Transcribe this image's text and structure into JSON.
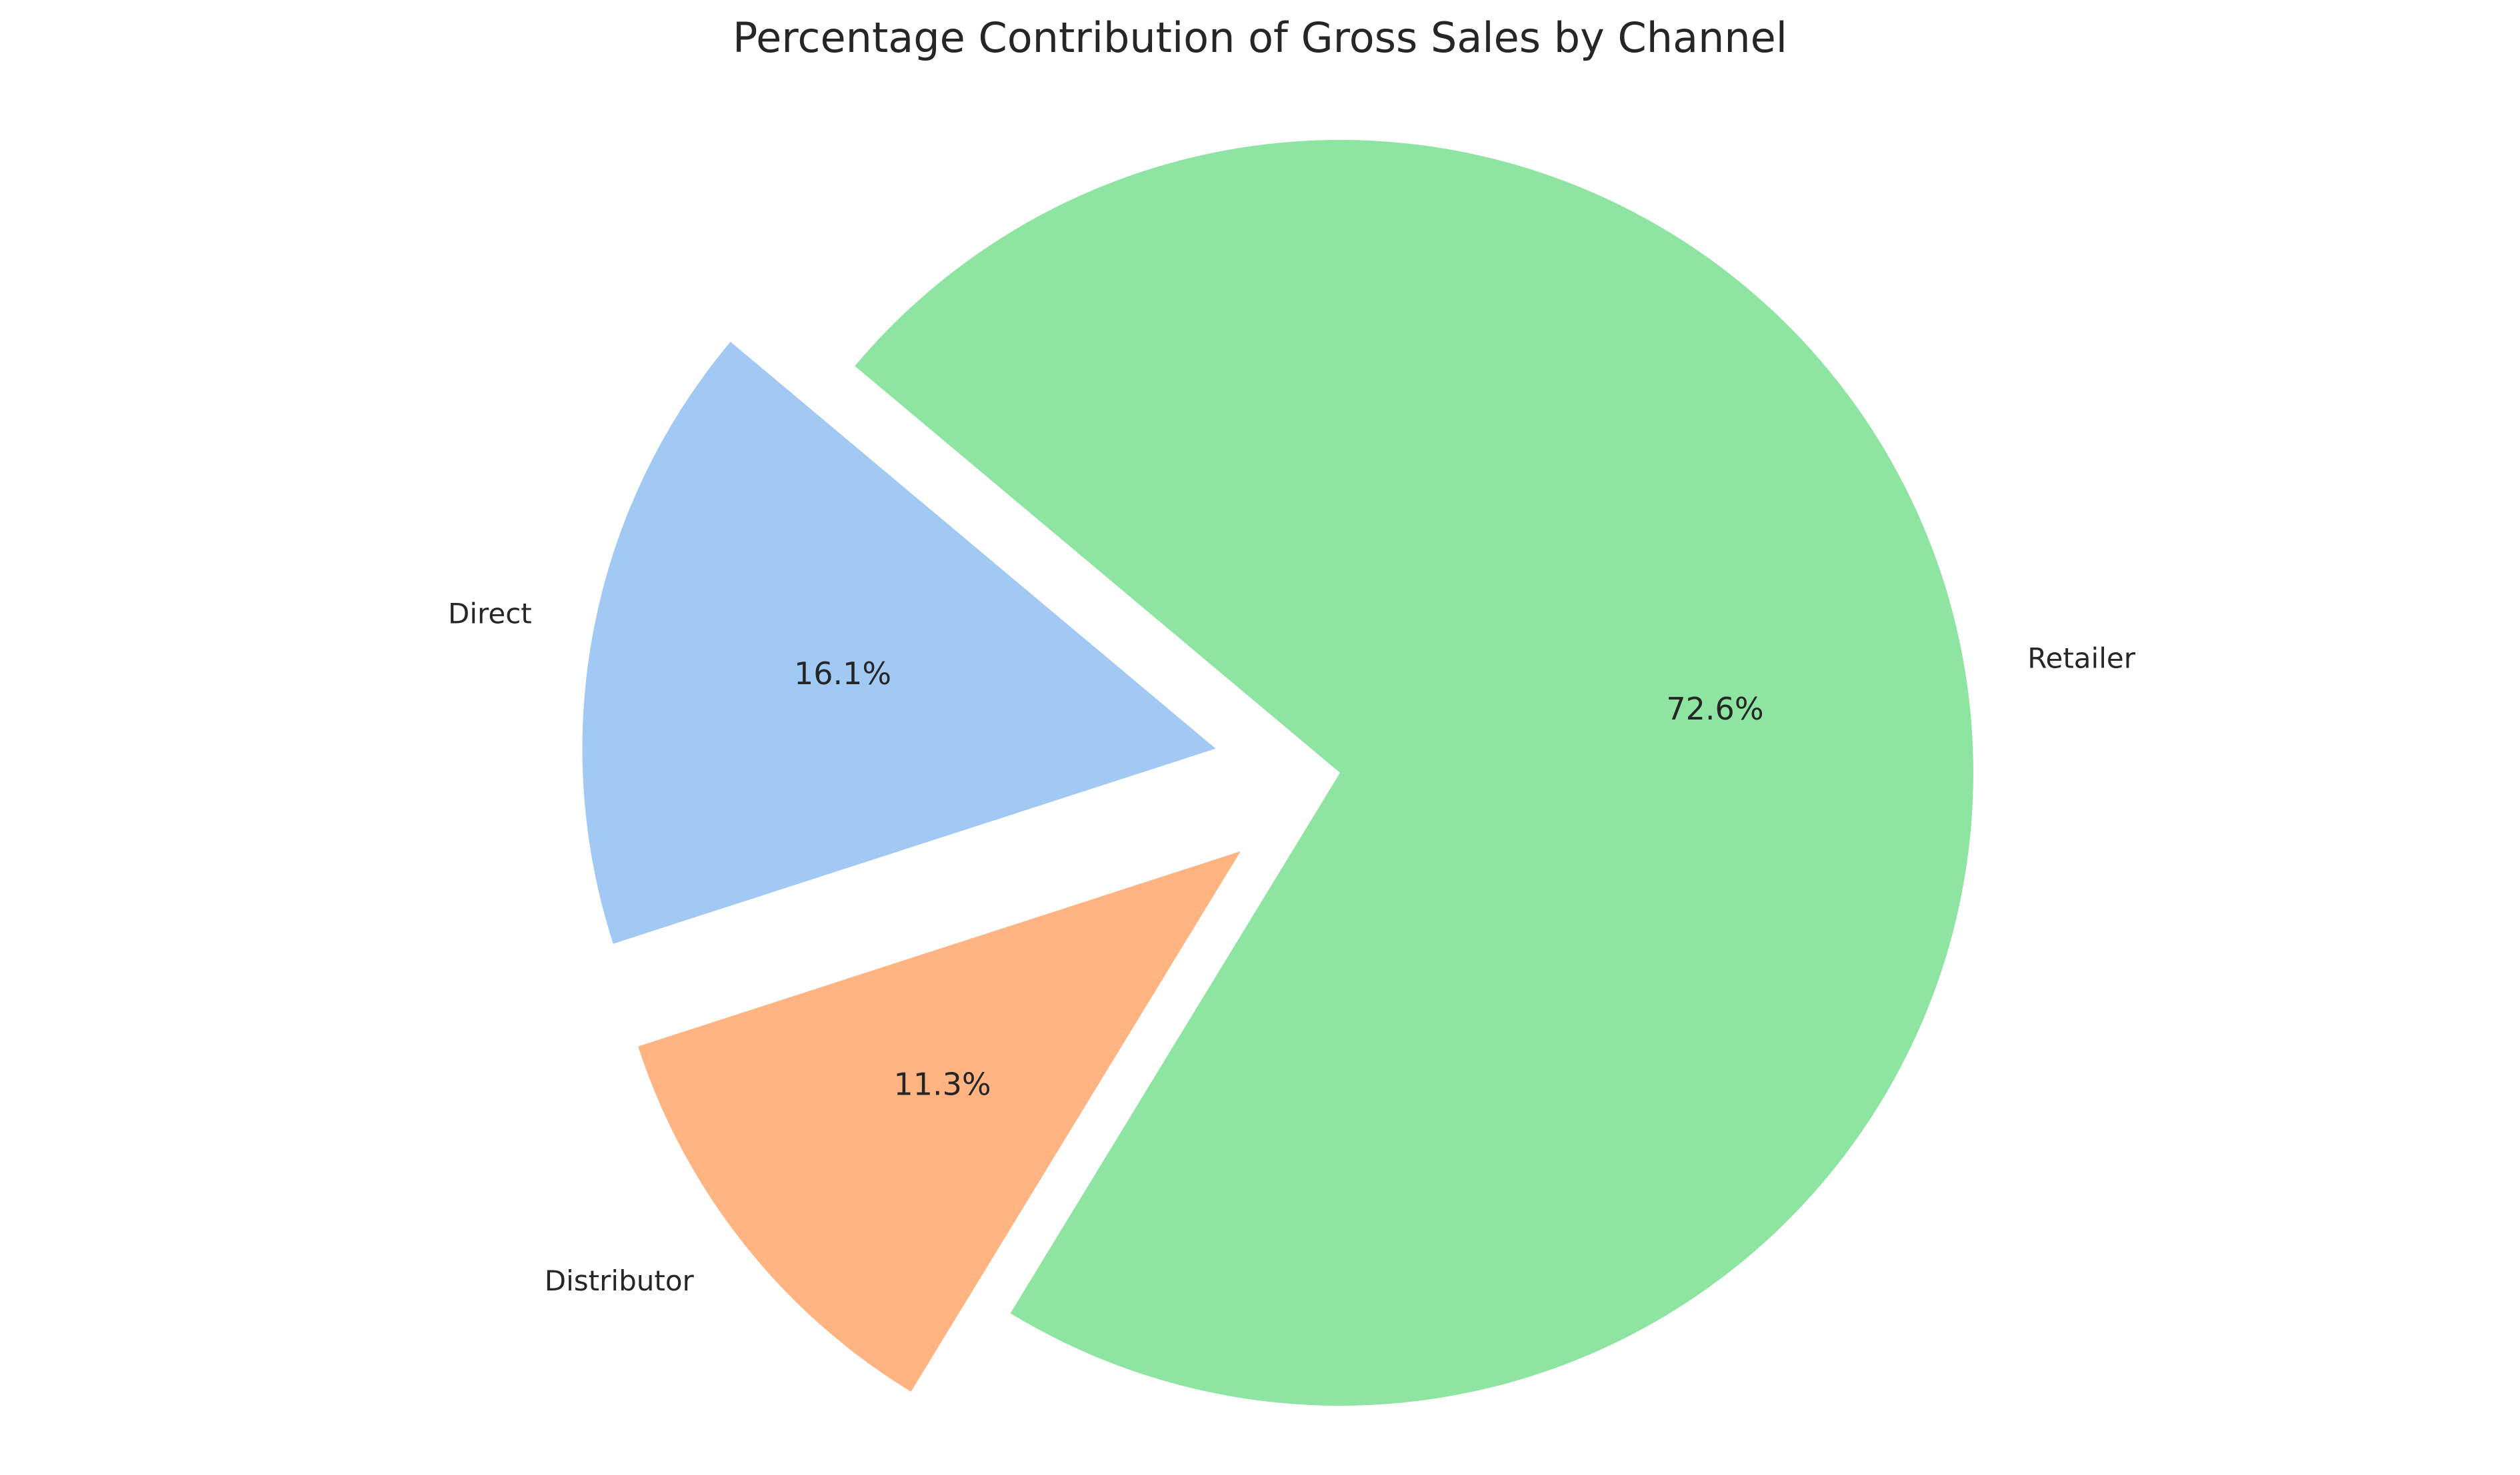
{
  "chart_data": {
    "type": "pie",
    "title": "Percentage Contribution of Gross Sales by Channel",
    "categories": [
      "Direct",
      "Distributor",
      "Retailer"
    ],
    "values": [
      16.1,
      11.3,
      72.6
    ],
    "value_labels": [
      "16.1%",
      "11.3%",
      "72.6%"
    ],
    "colors": [
      "#a1c9f4",
      "#ffb482",
      "#8de5a1"
    ],
    "exploded": [
      true,
      true,
      false
    ],
    "start_angle_deg": 140,
    "direction": "counterclockwise",
    "legend": "none"
  }
}
